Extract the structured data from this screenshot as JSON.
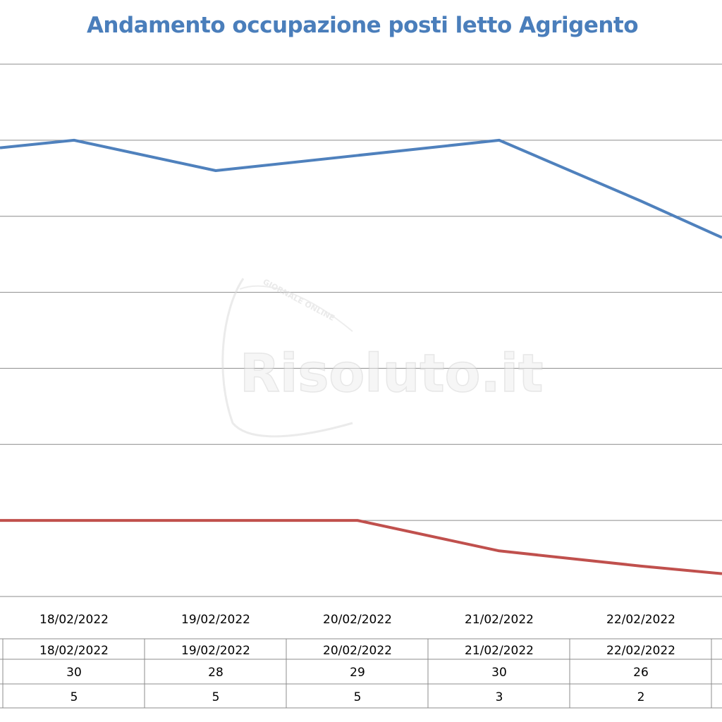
{
  "chart_data": {
    "type": "line",
    "title": "Andamento occupazione posti letto Agrigento",
    "title_color": "#4a7ebb",
    "categories": [
      "18/02/2022",
      "19/02/2022",
      "20/02/2022",
      "21/02/2022",
      "22/02/2022"
    ],
    "series": [
      {
        "values": [
          30,
          28,
          29,
          30,
          26
        ],
        "color": "#4f81bd"
      },
      {
        "values": [
          5,
          5,
          5,
          3,
          2
        ],
        "color": "#c0504d"
      }
    ],
    "series_edge_start": [
      29.5,
      5
    ],
    "series_edge_end": [
      23.6,
      1.5
    ],
    "ylim": [
      0,
      35
    ],
    "grid_step": 5,
    "grid": true,
    "legend": "none",
    "data_table": true
  },
  "watermark": {
    "brand": "Risoluto.it",
    "tagline": "GIORNALE ONLINE"
  }
}
